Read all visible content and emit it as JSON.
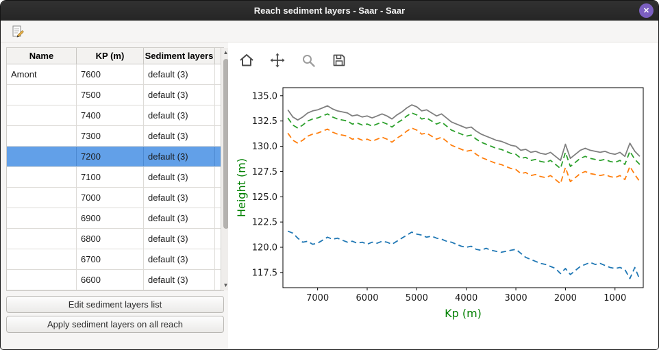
{
  "window": {
    "title": "Reach sediment layers - Saar - Saar",
    "close_glyph": "✕"
  },
  "colors": {
    "selected_row": "#62a0e8",
    "close_button": "#7b5fc0",
    "axis_labels": "#008000"
  },
  "icons": {
    "toolbar": [
      "edit-note-icon"
    ],
    "plot_toolbar": [
      "home-icon",
      "pan-icon",
      "zoom-icon",
      "save-icon"
    ],
    "titlebar": [
      "close-icon"
    ],
    "scrollbar": [
      "up-arrow-icon",
      "down-arrow-icon"
    ]
  },
  "table": {
    "headers": [
      "Name",
      "KP (m)",
      "Sediment layers"
    ],
    "rows": [
      {
        "name": "Amont",
        "kp": "7600",
        "layers": "default (3)",
        "selected": false
      },
      {
        "name": "",
        "kp": "7500",
        "layers": "default (3)",
        "selected": false
      },
      {
        "name": "",
        "kp": "7400",
        "layers": "default (3)",
        "selected": false
      },
      {
        "name": "",
        "kp": "7300",
        "layers": "default (3)",
        "selected": false
      },
      {
        "name": "",
        "kp": "7200",
        "layers": "default (3)",
        "selected": true
      },
      {
        "name": "",
        "kp": "7100",
        "layers": "default (3)",
        "selected": false
      },
      {
        "name": "",
        "kp": "7000",
        "layers": "default (3)",
        "selected": false
      },
      {
        "name": "",
        "kp": "6900",
        "layers": "default (3)",
        "selected": false
      },
      {
        "name": "",
        "kp": "6800",
        "layers": "default (3)",
        "selected": false
      },
      {
        "name": "",
        "kp": "6700",
        "layers": "default (3)",
        "selected": false
      },
      {
        "name": "",
        "kp": "6600",
        "layers": "default (3)",
        "selected": false
      }
    ]
  },
  "actions": {
    "edit_button": "Edit sediment layers list",
    "apply_button": "Apply sediment layers on all reach"
  },
  "chart_data": {
    "type": "line",
    "title": "",
    "xlabel": "Kp (m)",
    "ylabel": "Height (m)",
    "axis_label_color": "#008000",
    "x_inverted": true,
    "xlim": [
      7700,
      430
    ],
    "ylim": [
      116.0,
      135.8
    ],
    "xticks": [
      7000,
      6000,
      5000,
      4000,
      3000,
      2000,
      1000
    ],
    "yticks": [
      117.5,
      120.0,
      122.5,
      125.0,
      127.5,
      130.0,
      132.5,
      135.0
    ],
    "grid": false,
    "legend": "none",
    "x": [
      7600,
      7500,
      7400,
      7300,
      7200,
      7100,
      7000,
      6900,
      6800,
      6700,
      6600,
      6500,
      6400,
      6300,
      6200,
      6100,
      6000,
      5900,
      5800,
      5700,
      5600,
      5500,
      5400,
      5300,
      5200,
      5100,
      5000,
      4900,
      4800,
      4700,
      4600,
      4500,
      4400,
      4300,
      4200,
      4100,
      4000,
      3900,
      3800,
      3700,
      3600,
      3500,
      3400,
      3300,
      3200,
      3100,
      3000,
      2900,
      2800,
      2700,
      2600,
      2500,
      2400,
      2300,
      2200,
      2100,
      2000,
      1900,
      1800,
      1700,
      1600,
      1500,
      1400,
      1300,
      1200,
      1100,
      1000,
      900,
      800,
      700,
      600,
      500
    ],
    "series": [
      {
        "name": "gray-solid-upper-line",
        "color": "#7f7f7f",
        "style": "solid",
        "values": [
          133.6,
          132.9,
          132.6,
          132.9,
          133.3,
          133.5,
          133.6,
          133.8,
          134.0,
          133.7,
          133.5,
          133.4,
          133.3,
          133.0,
          133.1,
          132.9,
          133.0,
          132.8,
          133.0,
          133.2,
          133.0,
          132.7,
          133.1,
          133.4,
          133.8,
          134.1,
          133.9,
          133.5,
          133.6,
          133.3,
          133.0,
          133.2,
          132.8,
          132.4,
          132.2,
          132.0,
          131.8,
          131.9,
          131.5,
          131.2,
          131.0,
          130.8,
          130.6,
          130.5,
          130.3,
          130.1,
          130.0,
          129.6,
          129.7,
          129.4,
          129.5,
          129.3,
          129.2,
          129.4,
          129.0,
          128.6,
          130.2,
          128.8,
          129.2,
          129.6,
          129.8,
          129.6,
          129.5,
          129.4,
          129.5,
          129.3,
          129.2,
          129.4,
          129.0,
          130.3,
          129.5,
          129.0
        ]
      },
      {
        "name": "green-dashed-line",
        "color": "#2ca02c",
        "style": "dashed",
        "values": [
          132.8,
          132.1,
          131.8,
          132.1,
          132.5,
          132.7,
          132.8,
          133.0,
          133.2,
          132.9,
          132.7,
          132.6,
          132.5,
          132.2,
          132.3,
          132.1,
          132.2,
          132.0,
          132.2,
          132.4,
          132.2,
          131.9,
          132.3,
          132.6,
          133.0,
          133.3,
          133.1,
          132.7,
          132.8,
          132.5,
          132.2,
          132.4,
          132.0,
          131.6,
          131.4,
          131.2,
          131.0,
          131.1,
          130.7,
          130.4,
          130.2,
          130.0,
          129.8,
          129.7,
          129.5,
          129.3,
          129.2,
          128.8,
          128.9,
          128.6,
          128.7,
          128.5,
          128.4,
          128.6,
          128.2,
          127.8,
          129.4,
          128.0,
          128.4,
          128.8,
          129.0,
          128.8,
          128.7,
          128.6,
          128.7,
          128.5,
          128.4,
          128.6,
          128.2,
          129.5,
          128.7,
          128.2
        ]
      },
      {
        "name": "orange-dashed-line",
        "color": "#ff7f0e",
        "style": "dashed",
        "values": [
          131.3,
          130.6,
          130.3,
          130.6,
          131.0,
          131.2,
          131.3,
          131.5,
          131.7,
          131.4,
          131.2,
          131.1,
          131.0,
          130.7,
          130.8,
          130.6,
          130.7,
          130.5,
          130.7,
          130.9,
          130.7,
          130.4,
          130.8,
          131.1,
          131.5,
          131.8,
          131.6,
          131.2,
          131.3,
          131.0,
          130.7,
          130.9,
          130.5,
          130.1,
          129.9,
          129.7,
          129.5,
          129.6,
          129.2,
          128.9,
          128.7,
          128.5,
          128.3,
          128.2,
          128.0,
          127.8,
          127.7,
          127.3,
          127.4,
          127.1,
          127.2,
          127.0,
          126.9,
          127.1,
          126.7,
          126.3,
          127.9,
          126.5,
          126.9,
          127.3,
          127.5,
          127.3,
          127.2,
          127.1,
          127.2,
          127.0,
          126.9,
          127.1,
          126.7,
          128.0,
          127.2,
          126.5
        ]
      },
      {
        "name": "blue-dashed-bottom-line",
        "color": "#1f77b4",
        "style": "dashed",
        "values": [
          121.6,
          121.4,
          120.9,
          120.5,
          120.6,
          120.3,
          120.4,
          120.7,
          121.0,
          120.8,
          120.9,
          120.7,
          120.5,
          120.6,
          120.4,
          120.5,
          120.3,
          120.5,
          120.4,
          120.6,
          120.5,
          120.3,
          120.6,
          120.9,
          121.2,
          121.5,
          121.3,
          121.2,
          121.0,
          121.1,
          120.9,
          120.8,
          120.6,
          120.5,
          120.3,
          120.1,
          120.0,
          120.1,
          119.8,
          119.7,
          119.9,
          119.7,
          119.6,
          119.5,
          119.6,
          119.7,
          119.8,
          119.4,
          119.0,
          118.8,
          118.6,
          118.4,
          118.3,
          118.1,
          117.9,
          117.4,
          117.9,
          117.3,
          117.7,
          118.1,
          118.3,
          118.5,
          118.3,
          118.4,
          118.2,
          118.0,
          117.9,
          118.0,
          117.8,
          116.9,
          118.0,
          116.8
        ]
      }
    ]
  }
}
